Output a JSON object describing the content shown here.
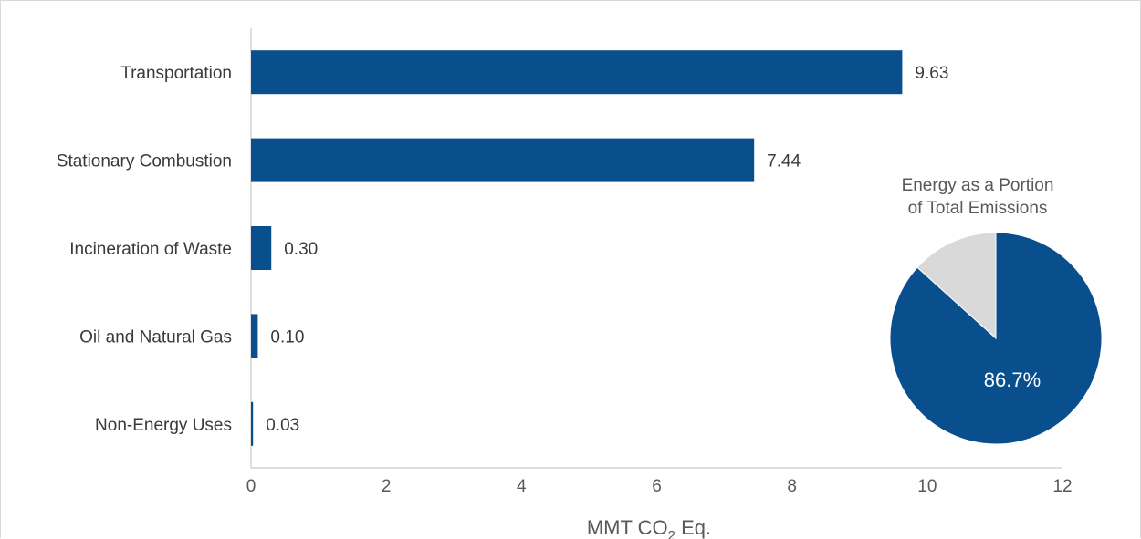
{
  "chart_data": [
    {
      "type": "bar",
      "orientation": "horizontal",
      "categories": [
        "Transportation",
        "Stationary Combustion",
        "Incineration of Waste",
        "Oil and Natural Gas",
        "Non-Energy Uses"
      ],
      "values": [
        9.63,
        7.44,
        0.3,
        0.1,
        0.03
      ],
      "value_labels": [
        "9.63",
        "7.44",
        "0.30",
        "0.10",
        "0.03"
      ],
      "xlabel": "MMT CO",
      "xlabel_subscript": "2",
      "xlabel_suffix": " Eq.",
      "xlim": [
        0,
        12
      ],
      "xticks": [
        "0",
        "2",
        "4",
        "6",
        "8",
        "10",
        "12"
      ],
      "grid": false,
      "bar_color": "#0a4f8d"
    },
    {
      "type": "pie",
      "title_lines": [
        "Energy as a Portion",
        "of Total Emissions"
      ],
      "values": [
        86.7,
        13.3
      ],
      "label": "86.7%",
      "colors": [
        "#0a4f8d",
        "#d9d9d9"
      ]
    }
  ]
}
